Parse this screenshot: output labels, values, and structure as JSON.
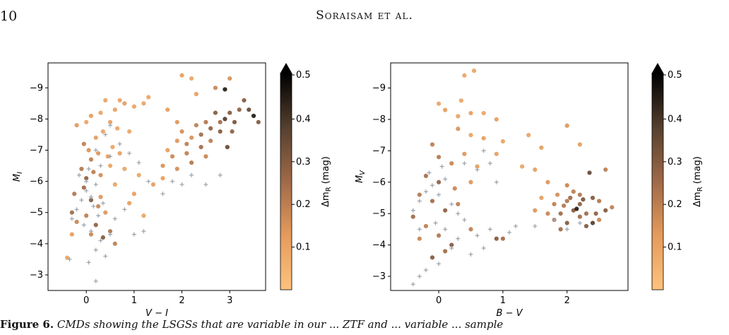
{
  "header": {
    "page_number": "10",
    "running_title": "Soraisam et al."
  },
  "caption": {
    "label": "Figure 6.",
    "text": " CMDs showing the LSGSs that are variable in our ... ZTF and ... variable ... sample"
  },
  "colorbar": {
    "label": "Δm_R (mag)",
    "ticks": [
      "0.1",
      "0.2",
      "0.3",
      "0.4",
      "0.5"
    ],
    "colors": [
      "#fdc27e",
      "#e59b5c",
      "#a06a48",
      "#55402f",
      "#000000"
    ]
  },
  "marker_colors": {
    "nonvariable": "#9aa1ab"
  },
  "chart_data": [
    {
      "type": "scatter",
      "xlabel": "V − I",
      "ylabel": "M_I",
      "xlim": [
        -0.8,
        3.75
      ],
      "ylim": [
        -2.5,
        -9.8
      ],
      "y_inverted": true,
      "xticks": [
        "0",
        "1",
        "2",
        "3"
      ],
      "yticks": [
        "−3",
        "−4",
        "−5",
        "−6",
        "−7",
        "−8",
        "−9"
      ],
      "variable_points": [
        [
          -0.4,
          -3.55,
          0.1
        ],
        [
          0.0,
          -7.9,
          0.1
        ],
        [
          0.1,
          -8.1,
          0.12
        ],
        [
          0.3,
          -8.2,
          0.1
        ],
        [
          0.4,
          -8.6,
          0.1
        ],
        [
          0.6,
          -8.3,
          0.11
        ],
        [
          0.7,
          -8.6,
          0.1
        ],
        [
          0.8,
          -8.5,
          0.12
        ],
        [
          1.0,
          -8.4,
          0.1
        ],
        [
          1.2,
          -8.5,
          0.1
        ],
        [
          1.3,
          -8.7,
          0.1
        ],
        [
          -0.2,
          -7.8,
          0.13
        ],
        [
          -0.05,
          -7.2,
          0.2
        ],
        [
          0.05,
          -7.0,
          0.15
        ],
        [
          0.2,
          -7.4,
          0.12
        ],
        [
          0.35,
          -7.6,
          0.1
        ],
        [
          0.5,
          -7.9,
          0.12
        ],
        [
          0.65,
          -7.7,
          0.1
        ],
        [
          0.9,
          -7.6,
          0.1
        ],
        [
          0.1,
          -6.7,
          0.2
        ],
        [
          0.25,
          -6.9,
          0.14
        ],
        [
          0.45,
          -6.8,
          0.12
        ],
        [
          0.55,
          -7.1,
          0.1
        ],
        [
          0.7,
          -6.9,
          0.12
        ],
        [
          -0.1,
          -6.4,
          0.22
        ],
        [
          0.0,
          -6.1,
          0.28
        ],
        [
          0.15,
          -6.3,
          0.2
        ],
        [
          0.3,
          -6.2,
          0.16
        ],
        [
          0.5,
          -6.5,
          0.1
        ],
        [
          -0.25,
          -5.6,
          0.22
        ],
        [
          -0.05,
          -5.8,
          0.25
        ],
        [
          0.1,
          -5.4,
          0.3
        ],
        [
          0.3,
          -5.5,
          0.14
        ],
        [
          0.6,
          -5.9,
          0.1
        ],
        [
          -0.3,
          -5.0,
          0.25
        ],
        [
          -0.2,
          -4.7,
          0.18
        ],
        [
          0.0,
          -4.9,
          0.2
        ],
        [
          0.2,
          -4.6,
          0.28
        ],
        [
          0.35,
          -4.2,
          0.3
        ],
        [
          0.5,
          -4.4,
          0.22
        ],
        [
          -0.3,
          -4.3,
          0.12
        ],
        [
          0.1,
          -4.3,
          0.18
        ],
        [
          0.6,
          -4.0,
          0.2
        ],
        [
          0.9,
          -5.3,
          0.12
        ],
        [
          1.1,
          -6.2,
          0.1
        ],
        [
          1.4,
          -5.9,
          0.12
        ],
        [
          1.6,
          -6.5,
          0.15
        ],
        [
          1.7,
          -7.0,
          0.12
        ],
        [
          1.8,
          -6.8,
          0.18
        ],
        [
          1.9,
          -7.3,
          0.14
        ],
        [
          2.0,
          -7.6,
          0.16
        ],
        [
          2.1,
          -7.2,
          0.2
        ],
        [
          2.2,
          -7.4,
          0.15
        ],
        [
          2.3,
          -7.8,
          0.2
        ],
        [
          2.4,
          -7.5,
          0.25
        ],
        [
          2.5,
          -7.9,
          0.22
        ],
        [
          2.6,
          -7.7,
          0.28
        ],
        [
          2.7,
          -8.2,
          0.3
        ],
        [
          2.8,
          -7.9,
          0.25
        ],
        [
          2.9,
          -8.0,
          0.38
        ],
        [
          3.0,
          -8.2,
          0.3
        ],
        [
          3.1,
          -7.9,
          0.32
        ],
        [
          3.2,
          -8.3,
          0.28
        ],
        [
          3.3,
          -8.6,
          0.3
        ],
        [
          3.4,
          -8.3,
          0.35
        ],
        [
          3.5,
          -8.1,
          0.45
        ],
        [
          3.6,
          -7.9,
          0.3
        ],
        [
          2.9,
          -8.95,
          0.45
        ],
        [
          2.7,
          -9.0,
          0.18
        ],
        [
          2.0,
          -9.4,
          0.12
        ],
        [
          2.2,
          -9.3,
          0.1
        ],
        [
          3.0,
          -9.3,
          0.15
        ],
        [
          2.3,
          -8.8,
          0.12
        ],
        [
          1.7,
          -8.3,
          0.12
        ],
        [
          1.9,
          -7.9,
          0.14
        ],
        [
          2.1,
          -6.9,
          0.2
        ],
        [
          2.4,
          -7.1,
          0.25
        ],
        [
          2.6,
          -7.3,
          0.2
        ],
        [
          2.8,
          -7.6,
          0.3
        ],
        [
          3.05,
          -7.6,
          0.28
        ],
        [
          2.95,
          -7.1,
          0.35
        ],
        [
          2.5,
          -6.8,
          0.18
        ],
        [
          2.2,
          -6.6,
          0.22
        ],
        [
          1.9,
          -6.4,
          0.16
        ],
        [
          1.6,
          -6.1,
          0.12
        ],
        [
          1.2,
          -4.9,
          0.1
        ],
        [
          1.0,
          -5.6,
          0.12
        ],
        [
          0.8,
          -6.4,
          0.1
        ],
        [
          0.4,
          -5.0,
          0.14
        ],
        [
          0.25,
          -5.2,
          0.18
        ]
      ],
      "nonvariable_points": [
        [
          -0.3,
          -4.8
        ],
        [
          -0.2,
          -5.1
        ],
        [
          -0.1,
          -5.4
        ],
        [
          0.0,
          -5.7
        ],
        [
          0.1,
          -5.5
        ],
        [
          0.2,
          -5.9
        ],
        [
          0.0,
          -6.0
        ],
        [
          -0.15,
          -6.2
        ],
        [
          0.05,
          -6.4
        ],
        [
          0.15,
          -5.2
        ],
        [
          0.25,
          -4.9
        ],
        [
          0.35,
          -5.3
        ],
        [
          -0.05,
          -4.6
        ],
        [
          0.1,
          -4.4
        ],
        [
          0.3,
          -4.1
        ],
        [
          0.2,
          -3.8
        ],
        [
          0.4,
          -3.6
        ],
        [
          0.05,
          -3.4
        ],
        [
          0.2,
          -2.8
        ],
        [
          0.5,
          -4.3
        ],
        [
          0.6,
          -4.8
        ],
        [
          0.8,
          -5.1
        ],
        [
          1.0,
          -4.3
        ],
        [
          1.2,
          -4.4
        ],
        [
          0.3,
          -6.5
        ],
        [
          0.5,
          -6.8
        ],
        [
          0.7,
          -7.2
        ],
        [
          0.9,
          -6.9
        ],
        [
          1.1,
          -6.6
        ],
        [
          1.3,
          -6.0
        ],
        [
          1.6,
          -5.6
        ],
        [
          1.8,
          -6.0
        ],
        [
          2.0,
          -5.9
        ],
        [
          2.2,
          -6.2
        ],
        [
          2.5,
          -5.9
        ],
        [
          2.8,
          -6.2
        ],
        [
          -0.35,
          -3.5
        ],
        [
          0.5,
          -7.8
        ],
        [
          0.4,
          -7.5
        ],
        [
          0.2,
          -7.0
        ]
      ]
    },
    {
      "type": "scatter",
      "xlabel": "B − V",
      "ylabel": "M_V",
      "xlim": [
        -0.75,
        2.95
      ],
      "ylim": [
        -2.55,
        -9.8
      ],
      "y_inverted": true,
      "xticks": [
        "0",
        "1",
        "2"
      ],
      "yticks": [
        "−3",
        "−4",
        "−5",
        "−6",
        "−7",
        "−8",
        "−9"
      ],
      "variable_points": [
        [
          0.55,
          -9.55,
          0.1
        ],
        [
          0.4,
          -9.4,
          0.1
        ],
        [
          0.35,
          -8.6,
          0.1
        ],
        [
          0.0,
          -8.5,
          0.1
        ],
        [
          0.1,
          -8.3,
          0.12
        ],
        [
          0.3,
          -8.1,
          0.1
        ],
        [
          0.5,
          -8.2,
          0.12
        ],
        [
          0.7,
          -8.2,
          0.1
        ],
        [
          0.9,
          -8.0,
          0.12
        ],
        [
          0.3,
          -7.7,
          0.15
        ],
        [
          0.5,
          -7.5,
          0.1
        ],
        [
          0.7,
          -7.4,
          0.12
        ],
        [
          1.0,
          -7.3,
          0.1
        ],
        [
          1.4,
          -7.5,
          0.1
        ],
        [
          1.6,
          -7.1,
          0.12
        ],
        [
          2.0,
          -7.8,
          0.14
        ],
        [
          2.2,
          -7.2,
          0.12
        ],
        [
          1.3,
          -6.5,
          0.1
        ],
        [
          1.5,
          -6.4,
          0.12
        ],
        [
          1.7,
          -6.0,
          0.14
        ],
        [
          0.9,
          -6.9,
          0.12
        ],
        [
          -0.1,
          -7.2,
          0.2
        ],
        [
          0.0,
          -6.8,
          0.22
        ],
        [
          0.2,
          -6.6,
          0.18
        ],
        [
          0.4,
          -6.9,
          0.14
        ],
        [
          0.6,
          -6.5,
          0.12
        ],
        [
          -0.2,
          -6.2,
          0.24
        ],
        [
          0.0,
          -6.0,
          0.28
        ],
        [
          0.25,
          -5.8,
          0.18
        ],
        [
          0.5,
          -6.0,
          0.14
        ],
        [
          -0.3,
          -5.6,
          0.22
        ],
        [
          -0.1,
          -5.4,
          0.25
        ],
        [
          0.1,
          -5.1,
          0.28
        ],
        [
          0.3,
          -5.3,
          0.2
        ],
        [
          -0.4,
          -4.9,
          0.25
        ],
        [
          -0.2,
          -4.6,
          0.2
        ],
        [
          0.0,
          -4.3,
          0.22
        ],
        [
          0.2,
          -4.0,
          0.3
        ],
        [
          -0.3,
          -4.2,
          0.18
        ],
        [
          0.1,
          -3.8,
          0.25
        ],
        [
          0.5,
          -4.5,
          0.2
        ],
        [
          0.9,
          -4.2,
          0.3
        ],
        [
          1.0,
          -4.2,
          0.25
        ],
        [
          -0.1,
          -3.6,
          0.3
        ],
        [
          1.7,
          -5.0,
          0.18
        ],
        [
          1.8,
          -5.3,
          0.2
        ],
        [
          1.9,
          -5.0,
          0.25
        ],
        [
          2.0,
          -5.4,
          0.22
        ],
        [
          2.1,
          -5.1,
          0.3
        ],
        [
          2.15,
          -5.15,
          0.45
        ],
        [
          2.2,
          -5.3,
          0.28
        ],
        [
          2.3,
          -5.0,
          0.25
        ],
        [
          2.4,
          -4.7,
          0.38
        ],
        [
          2.5,
          -5.4,
          0.22
        ],
        [
          2.6,
          -5.1,
          0.3
        ],
        [
          2.7,
          -5.2,
          0.2
        ],
        [
          1.8,
          -4.8,
          0.2
        ],
        [
          2.0,
          -4.7,
          0.3
        ],
        [
          2.2,
          -4.9,
          0.25
        ],
        [
          2.3,
          -4.6,
          0.3
        ],
        [
          2.1,
          -5.7,
          0.2
        ],
        [
          2.0,
          -5.9,
          0.18
        ],
        [
          2.2,
          -5.6,
          0.22
        ],
        [
          2.4,
          -5.5,
          0.3
        ],
        [
          2.35,
          -6.3,
          0.35
        ],
        [
          1.6,
          -5.5,
          0.12
        ],
        [
          1.5,
          -5.1,
          0.14
        ],
        [
          1.9,
          -4.5,
          0.25
        ],
        [
          2.6,
          -6.4,
          0.2
        ],
        [
          2.5,
          -4.8,
          0.18
        ],
        [
          2.05,
          -5.5,
          0.26
        ],
        [
          1.95,
          -5.25,
          0.22
        ],
        [
          2.25,
          -5.45,
          0.32
        ],
        [
          2.45,
          -5.0,
          0.28
        ],
        [
          1.85,
          -5.6,
          0.16
        ]
      ],
      "nonvariable_points": [
        [
          -0.4,
          -5.1
        ],
        [
          -0.3,
          -5.4
        ],
        [
          -0.2,
          -5.7
        ],
        [
          -0.1,
          -5.9
        ],
        [
          0.0,
          -5.6
        ],
        [
          0.1,
          -6.1
        ],
        [
          -0.15,
          -6.3
        ],
        [
          0.05,
          -6.5
        ],
        [
          0.2,
          -5.3
        ],
        [
          0.3,
          -5.0
        ],
        [
          0.4,
          -4.8
        ],
        [
          -0.05,
          -4.7
        ],
        [
          0.1,
          -4.5
        ],
        [
          0.3,
          -4.2
        ],
        [
          0.2,
          -3.9
        ],
        [
          -0.2,
          -3.2
        ],
        [
          -0.3,
          -3.0
        ],
        [
          -0.4,
          -2.75
        ],
        [
          0.0,
          -3.4
        ],
        [
          0.5,
          -3.7
        ],
        [
          0.7,
          -3.9
        ],
        [
          0.6,
          -4.3
        ],
        [
          0.8,
          -4.5
        ],
        [
          0.6,
          -6.4
        ],
        [
          0.8,
          -6.6
        ],
        [
          0.9,
          -6.0
        ],
        [
          1.1,
          -4.4
        ],
        [
          1.2,
          -4.6
        ],
        [
          1.5,
          -4.6
        ],
        [
          1.8,
          -4.8
        ],
        [
          2.0,
          -4.5
        ],
        [
          2.2,
          -4.7
        ],
        [
          0.4,
          -6.6
        ],
        [
          0.7,
          -7.0
        ],
        [
          -0.3,
          -4.5
        ]
      ]
    }
  ]
}
